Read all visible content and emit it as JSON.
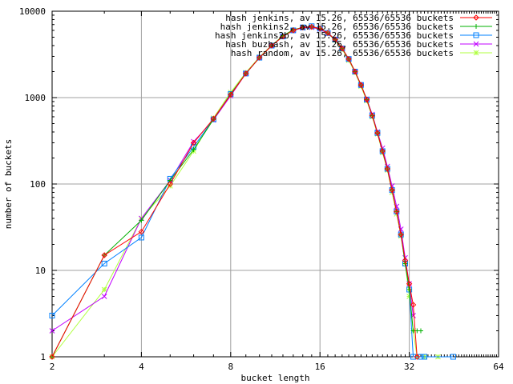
{
  "chart_data": {
    "type": "line",
    "title": "",
    "xlabel": "bucket length",
    "ylabel": "number of buckets",
    "x_scale": "log2",
    "y_scale": "log10",
    "xlim": [
      2,
      64
    ],
    "ylim": [
      1,
      10000
    ],
    "x_ticks": [
      "2",
      "4",
      "8",
      "16",
      "32",
      "64"
    ],
    "y_ticks": [
      "1",
      "10",
      "100",
      "1000",
      "10000"
    ],
    "grid": true,
    "legend_position": "top-right",
    "series": [
      {
        "name": "hash jenkins, av 15.26, 65536/65536 buckets",
        "color": "#ff0000",
        "marker": "diamond",
        "points": [
          [
            2,
            1
          ],
          [
            3,
            15
          ],
          [
            4,
            28
          ],
          [
            5,
            100
          ],
          [
            6,
            300
          ],
          [
            7,
            570
          ],
          [
            8,
            1080
          ],
          [
            9,
            1900
          ],
          [
            10,
            2900
          ],
          [
            11,
            4000
          ],
          [
            12,
            5100
          ],
          [
            13,
            6000
          ],
          [
            14,
            6500
          ],
          [
            15,
            6600
          ],
          [
            16,
            6300
          ],
          [
            17,
            5600
          ],
          [
            18,
            4700
          ],
          [
            19,
            3700
          ],
          [
            20,
            2800
          ],
          [
            21,
            2000
          ],
          [
            22,
            1400
          ],
          [
            23,
            950
          ],
          [
            24,
            620
          ],
          [
            25,
            390
          ],
          [
            26,
            240
          ],
          [
            27,
            150
          ],
          [
            28,
            85
          ],
          [
            29,
            48
          ],
          [
            30,
            26
          ],
          [
            31,
            13
          ],
          [
            32,
            7
          ],
          [
            33,
            4
          ],
          [
            34,
            1
          ]
        ]
      },
      {
        "name": "hash jenkins2, av 15.26, 65536/65536 buckets",
        "color": "#00b000",
        "marker": "plus",
        "points": [
          [
            2,
            1
          ],
          [
            3,
            15
          ],
          [
            4,
            38
          ],
          [
            5,
            110
          ],
          [
            6,
            250
          ],
          [
            7,
            560
          ],
          [
            8,
            1100
          ],
          [
            9,
            1900
          ],
          [
            10,
            2900
          ],
          [
            11,
            4000
          ],
          [
            12,
            5200
          ],
          [
            13,
            6100
          ],
          [
            14,
            6500
          ],
          [
            15,
            6600
          ],
          [
            16,
            6300
          ],
          [
            17,
            5600
          ],
          [
            18,
            4700
          ],
          [
            19,
            3700
          ],
          [
            20,
            2800
          ],
          [
            21,
            2000
          ],
          [
            22,
            1400
          ],
          [
            23,
            950
          ],
          [
            24,
            620
          ],
          [
            25,
            390
          ],
          [
            26,
            240
          ],
          [
            27,
            150
          ],
          [
            28,
            85
          ],
          [
            29,
            48
          ],
          [
            30,
            26
          ],
          [
            31,
            12
          ],
          [
            32,
            6
          ],
          [
            33,
            2
          ],
          [
            34,
            2
          ],
          [
            35,
            2
          ]
        ]
      },
      {
        "name": "hash jenkins2b, av 15.26, 65536/65536 buckets",
        "color": "#0080ff",
        "marker": "square",
        "points": [
          [
            2,
            3
          ],
          [
            3,
            12
          ],
          [
            4,
            24
          ],
          [
            5,
            115
          ],
          [
            6,
            270
          ],
          [
            7,
            560
          ],
          [
            8,
            1100
          ],
          [
            9,
            1900
          ],
          [
            10,
            2900
          ],
          [
            11,
            4000
          ],
          [
            12,
            5100
          ],
          [
            13,
            6000
          ],
          [
            14,
            6500
          ],
          [
            15,
            6700
          ],
          [
            16,
            6300
          ],
          [
            17,
            5600
          ],
          [
            18,
            4700
          ],
          [
            19,
            3700
          ],
          [
            20,
            2800
          ],
          [
            21,
            2000
          ],
          [
            22,
            1400
          ],
          [
            23,
            950
          ],
          [
            24,
            620
          ],
          [
            25,
            390
          ],
          [
            26,
            240
          ],
          [
            27,
            150
          ],
          [
            28,
            85
          ],
          [
            29,
            48
          ],
          [
            30,
            26
          ],
          [
            31,
            12
          ],
          [
            32,
            6
          ],
          [
            33,
            1
          ],
          [
            35,
            1
          ],
          [
            36,
            1
          ],
          [
            45,
            1
          ]
        ]
      },
      {
        "name": "hash buzhash, av 15.26, 65536/65536 buckets",
        "color": "#c000ff",
        "marker": "x",
        "points": [
          [
            2,
            2
          ],
          [
            3,
            5
          ],
          [
            4,
            40
          ],
          [
            5,
            110
          ],
          [
            6,
            310
          ],
          [
            7,
            550
          ],
          [
            8,
            1050
          ],
          [
            9,
            1900
          ],
          [
            10,
            2900
          ],
          [
            11,
            4000
          ],
          [
            12,
            5100
          ],
          [
            13,
            6000
          ],
          [
            14,
            6400
          ],
          [
            15,
            6500
          ],
          [
            16,
            6200
          ],
          [
            17,
            5500
          ],
          [
            18,
            4700
          ],
          [
            19,
            3700
          ],
          [
            20,
            2800
          ],
          [
            21,
            2000
          ],
          [
            22,
            1400
          ],
          [
            23,
            960
          ],
          [
            24,
            640
          ],
          [
            25,
            400
          ],
          [
            26,
            260
          ],
          [
            27,
            160
          ],
          [
            28,
            95
          ],
          [
            29,
            55
          ],
          [
            30,
            30
          ],
          [
            31,
            14
          ],
          [
            32,
            7
          ],
          [
            33,
            3
          ]
        ]
      },
      {
        "name": "hash random, av 15.26, 65536/65536 buckets",
        "color": "#b0ff40",
        "marker": "star",
        "points": [
          [
            2,
            1
          ],
          [
            3,
            6
          ],
          [
            4,
            40
          ],
          [
            5,
            95
          ],
          [
            6,
            240
          ],
          [
            7,
            580
          ],
          [
            8,
            1150
          ],
          [
            9,
            1950
          ],
          [
            10,
            2950
          ],
          [
            11,
            4050
          ],
          [
            12,
            5100
          ],
          [
            13,
            6000
          ],
          [
            14,
            6400
          ],
          [
            15,
            6500
          ],
          [
            16,
            6200
          ],
          [
            17,
            5500
          ],
          [
            18,
            4600
          ],
          [
            19,
            3600
          ],
          [
            20,
            2700
          ],
          [
            21,
            1950
          ],
          [
            22,
            1350
          ],
          [
            23,
            920
          ],
          [
            24,
            600
          ],
          [
            25,
            380
          ],
          [
            26,
            230
          ],
          [
            27,
            145
          ],
          [
            28,
            80
          ],
          [
            29,
            45
          ],
          [
            30,
            25
          ],
          [
            31,
            12
          ],
          [
            32,
            5
          ],
          [
            33,
            2
          ],
          [
            34,
            1
          ],
          [
            36,
            1
          ],
          [
            40,
            1
          ]
        ]
      }
    ]
  }
}
